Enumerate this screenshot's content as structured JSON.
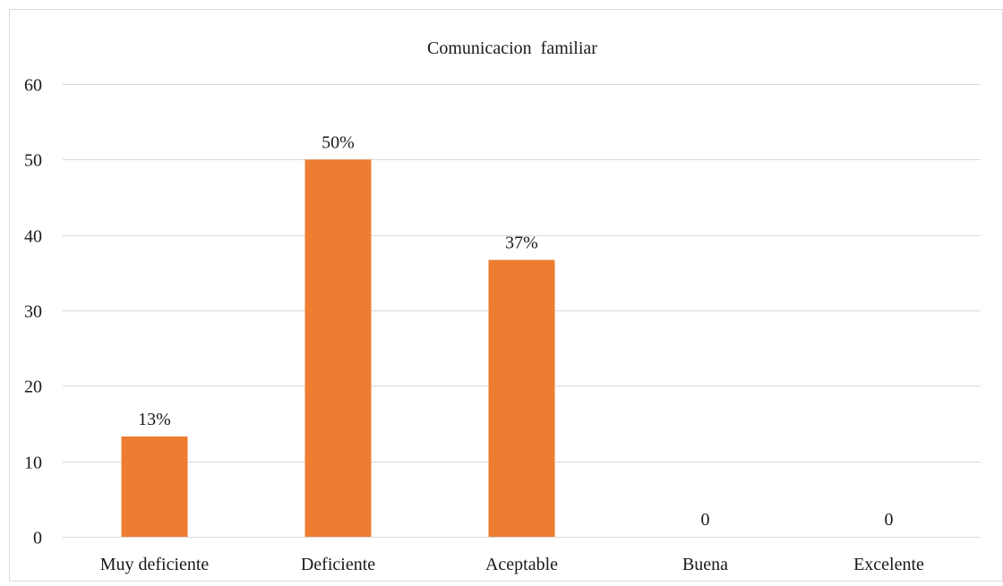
{
  "chart_data": {
    "type": "bar",
    "title": "Comunicacion  familiar",
    "categories": [
      "Muy deficiente",
      "Deficiente",
      "Aceptable",
      "Buena",
      "Excelente"
    ],
    "values": [
      13.3,
      50,
      36.7,
      0,
      0
    ],
    "data_labels": [
      "13%",
      "50%",
      "37%",
      "0",
      "0"
    ],
    "xlabel": "",
    "ylabel": "",
    "ylim": [
      0,
      60
    ],
    "yticks": [
      "0",
      "10",
      "20",
      "30",
      "40",
      "50",
      "60"
    ],
    "grid": true,
    "legend": "none",
    "colors": {
      "bar": "#ED7D31",
      "grid": "#d9d9d9",
      "border": "#d9d9d9",
      "text": "#1a1a1a"
    }
  }
}
